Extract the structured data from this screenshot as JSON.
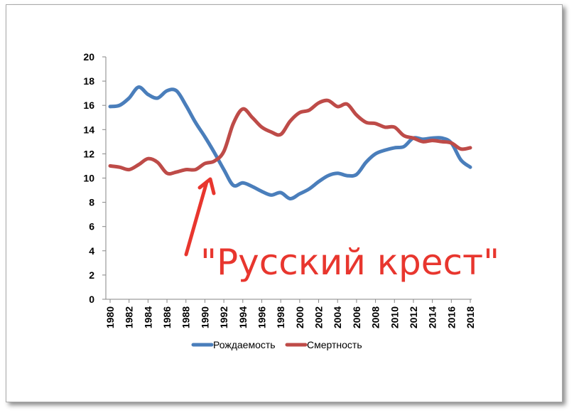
{
  "chart_data": {
    "type": "line",
    "title": "",
    "xlabel": "",
    "ylabel": "",
    "ylim": [
      0,
      20
    ],
    "yticks": [
      0,
      2,
      4,
      6,
      8,
      10,
      12,
      14,
      16,
      18,
      20
    ],
    "xlim": [
      1980,
      2018
    ],
    "xticks": [
      "1980",
      "1982",
      "1984",
      "1986",
      "1988",
      "1990",
      "1992",
      "1994",
      "1996",
      "1998",
      "2000",
      "2002",
      "2004",
      "2006",
      "2008",
      "2010",
      "2012",
      "2014",
      "2016",
      "2018"
    ],
    "grid": false,
    "legend_position": "bottom",
    "x": [
      1980,
      1981,
      1982,
      1983,
      1984,
      1985,
      1986,
      1987,
      1988,
      1989,
      1990,
      1991,
      1992,
      1993,
      1994,
      1995,
      1996,
      1997,
      1998,
      1999,
      2000,
      2001,
      2002,
      2003,
      2004,
      2005,
      2006,
      2007,
      2008,
      2009,
      2010,
      2011,
      2012,
      2013,
      2014,
      2015,
      2016,
      2017,
      2018
    ],
    "series": [
      {
        "name": "Рождаемость",
        "color": "#4a7ebb",
        "values": [
          15.9,
          16.0,
          16.6,
          17.5,
          16.9,
          16.6,
          17.2,
          17.2,
          16.0,
          14.6,
          13.4,
          12.1,
          10.7,
          9.4,
          9.6,
          9.3,
          8.9,
          8.6,
          8.8,
          8.3,
          8.7,
          9.1,
          9.7,
          10.2,
          10.4,
          10.2,
          10.3,
          11.3,
          12.0,
          12.3,
          12.5,
          12.6,
          13.3,
          13.2,
          13.3,
          13.3,
          12.9,
          11.5,
          10.9
        ]
      },
      {
        "name": "Смертность",
        "color": "#be4b48",
        "values": [
          11.0,
          10.9,
          10.7,
          11.1,
          11.6,
          11.3,
          10.4,
          10.5,
          10.7,
          10.7,
          11.2,
          11.4,
          12.2,
          14.5,
          15.7,
          15.0,
          14.2,
          13.8,
          13.6,
          14.7,
          15.4,
          15.6,
          16.2,
          16.4,
          15.9,
          16.1,
          15.2,
          14.6,
          14.5,
          14.2,
          14.2,
          13.5,
          13.3,
          13.0,
          13.1,
          13.0,
          12.9,
          12.4,
          12.5
        ]
      }
    ],
    "annotation": "\"Русский крест\""
  }
}
